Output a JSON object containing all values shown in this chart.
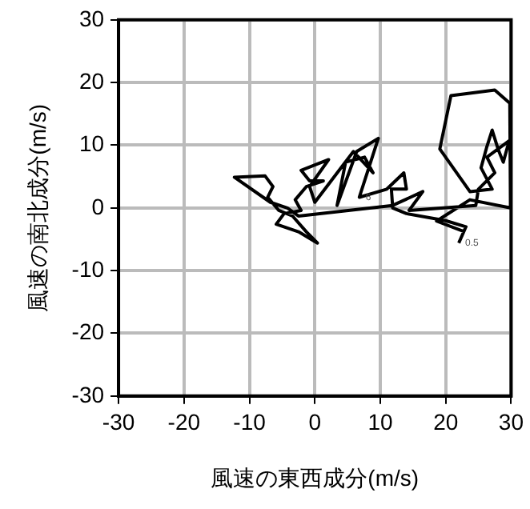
{
  "chart_data": {
    "type": "line",
    "xlabel": "風速の東西成分(m/s)",
    "ylabel": "風速の南北成分(m/s)",
    "x": [
      22.0,
      23.1,
      19.9,
      14.0,
      11.9,
      11.7,
      14.0,
      13.6,
      11.0,
      6.8,
      9.7,
      6.4,
      3.4,
      4.7,
      7.6,
      8.9,
      5.9,
      0,
      -0.8,
      2.1,
      -2.1,
      -0.8,
      1.3,
      -1.3,
      -3.0,
      -2.1,
      -4.7,
      -5.9,
      -2.5,
      0.4,
      -1.3,
      -3.4,
      -5.5,
      -7.2,
      -6.4,
      -7.6,
      -12.3,
      -6.8,
      -4.2,
      -2.5,
      11.9,
      16.5,
      14.4,
      24.6,
      25.0,
      27.5,
      26.3,
      29.7,
      28.8,
      28.0,
      27.1,
      26.3,
      25.4,
      27.1,
      23.7,
      19.1,
      20.8,
      27.5,
      29.8,
      29.9,
      23.7,
      18.6,
      22.9
    ],
    "values": [
      -5.6,
      -3.0,
      -2.0,
      -0.9,
      0,
      3.0,
      3.0,
      5.6,
      3.0,
      1.7,
      11.1,
      9.0,
      0.4,
      7.3,
      8.1,
      5.6,
      9.0,
      0.9,
      3.4,
      7.7,
      6.0,
      4.3,
      4.3,
      3.4,
      1.3,
      -0.4,
      -0.9,
      -2.6,
      -3.8,
      -5.6,
      -3.8,
      -1.3,
      -0.4,
      1.7,
      3.4,
      5.1,
      4.9,
      0.9,
      0,
      -1.3,
      0.4,
      2.6,
      -0.4,
      0.4,
      3.0,
      5.6,
      8.1,
      10.7,
      7.3,
      9.4,
      12.4,
      9.8,
      6.4,
      3.0,
      2.6,
      9.4,
      17.9,
      18.8,
      16.7,
      0,
      1.3,
      -2.1,
      -3.8
    ],
    "color": "#000000",
    "marker": "none",
    "line_style": "solid",
    "xlim": [
      -30,
      30
    ],
    "ylim": [
      -30,
      30
    ],
    "xticks": [
      -30,
      -20,
      -10,
      0,
      10,
      20,
      30
    ],
    "yticks": [
      -30,
      -20,
      -10,
      0,
      10,
      20,
      30
    ],
    "grid": true,
    "legend": false,
    "annotations": [
      {
        "text": "0.5",
        "x": 22.0,
        "y": -5.6
      },
      {
        "text": "6",
        "x": 6.8,
        "y": 1.7
      }
    ]
  }
}
